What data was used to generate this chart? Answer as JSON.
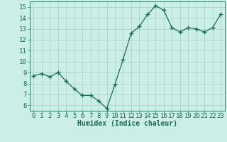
{
  "x": [
    0,
    1,
    2,
    3,
    4,
    5,
    6,
    7,
    8,
    9,
    10,
    11,
    12,
    13,
    14,
    15,
    16,
    17,
    18,
    19,
    20,
    21,
    22,
    23
  ],
  "y": [
    8.7,
    8.9,
    8.6,
    9.0,
    8.2,
    7.5,
    6.9,
    6.9,
    6.4,
    5.7,
    7.9,
    10.2,
    12.6,
    13.2,
    14.3,
    15.1,
    14.7,
    13.1,
    12.7,
    13.1,
    13.0,
    12.7,
    13.1,
    14.3
  ],
  "line_color": "#1a6b5a",
  "marker": "+",
  "marker_size": 4,
  "bg_color": "#cceee8",
  "grid_color": "#b0d8d0",
  "axis_color": "#1a6b5a",
  "tick_color": "#1a6b5a",
  "xlabel": "Humidex (Indice chaleur)",
  "xlim": [
    -0.5,
    23.5
  ],
  "ylim": [
    5.5,
    15.5
  ],
  "yticks": [
    6,
    7,
    8,
    9,
    10,
    11,
    12,
    13,
    14,
    15
  ],
  "xticks": [
    0,
    1,
    2,
    3,
    4,
    5,
    6,
    7,
    8,
    9,
    10,
    11,
    12,
    13,
    14,
    15,
    16,
    17,
    18,
    19,
    20,
    21,
    22,
    23
  ],
  "xlabel_fontsize": 7,
  "tick_fontsize": 6.5,
  "lw": 0.9
}
